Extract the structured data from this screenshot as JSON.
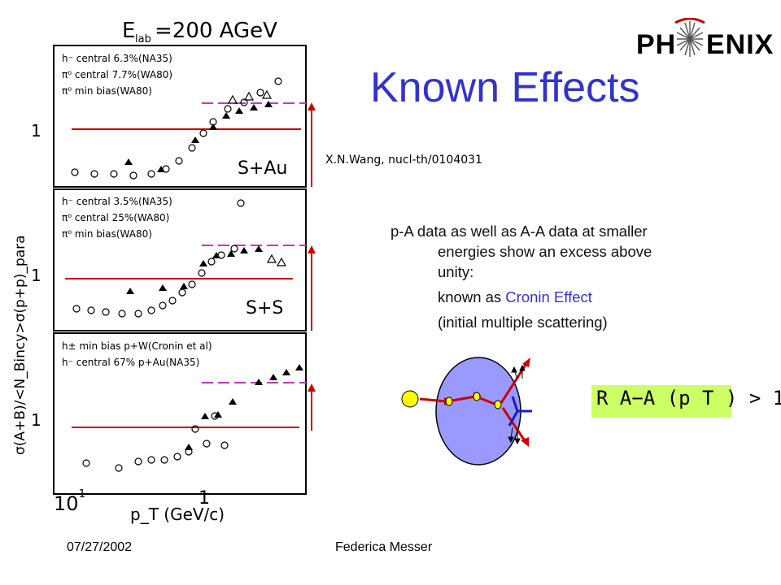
{
  "title": "Known Effects",
  "logo": {
    "text_left": "PH",
    "text_right": "ENIX"
  },
  "reference": "X.N.Wang, nucl-th/0104031",
  "bullets": {
    "line1": "p-A  data as well as A-A data at smaller energies show an excess above  unity:",
    "line2_prefix": "known as ",
    "line2_highlight": "Cronin Effect",
    "line3": "(initial multiple scattering)"
  },
  "ratio_formula": "R A−A (p T ) > 1",
  "footer": {
    "date": "07/27/2002",
    "author": "Federica Messer"
  },
  "colors": {
    "title": "#3333cc",
    "highlight": "#3333cc",
    "reference_line": "#cc0000",
    "dashed_line": "#cc33cc",
    "formula_bg": "#ccff66"
  },
  "figure": {
    "header": "E",
    "header_sub": "lab",
    "header_rest": "=200 AGeV",
    "ylabel": "σ(A+B)/<N_Bincy>σ(p+p)_para",
    "xlabel": "p_T (GeV/c)",
    "xtick_low": "10",
    "xtick_low_exp": "-1",
    "xtick_high": "1",
    "panels": [
      {
        "label": "S+Au",
        "ytick": "1",
        "legend": [
          "h⁻ central 6.3%(NA35)",
          "π⁰ central 7.7%(WA80)",
          "π⁰ min bias(WA80)"
        ]
      },
      {
        "label": "S+S",
        "ytick": "1",
        "legend": [
          "h⁻ central 3.5%(NA35)",
          "π⁰ central 25%(WA80)",
          "π⁰ min bias(WA80)"
        ]
      },
      {
        "label": "",
        "ytick": "1",
        "legend": [
          "h± min bias p+W(Cronin et al)",
          "h⁻ central 67% p+Au(NA35)"
        ]
      }
    ]
  }
}
